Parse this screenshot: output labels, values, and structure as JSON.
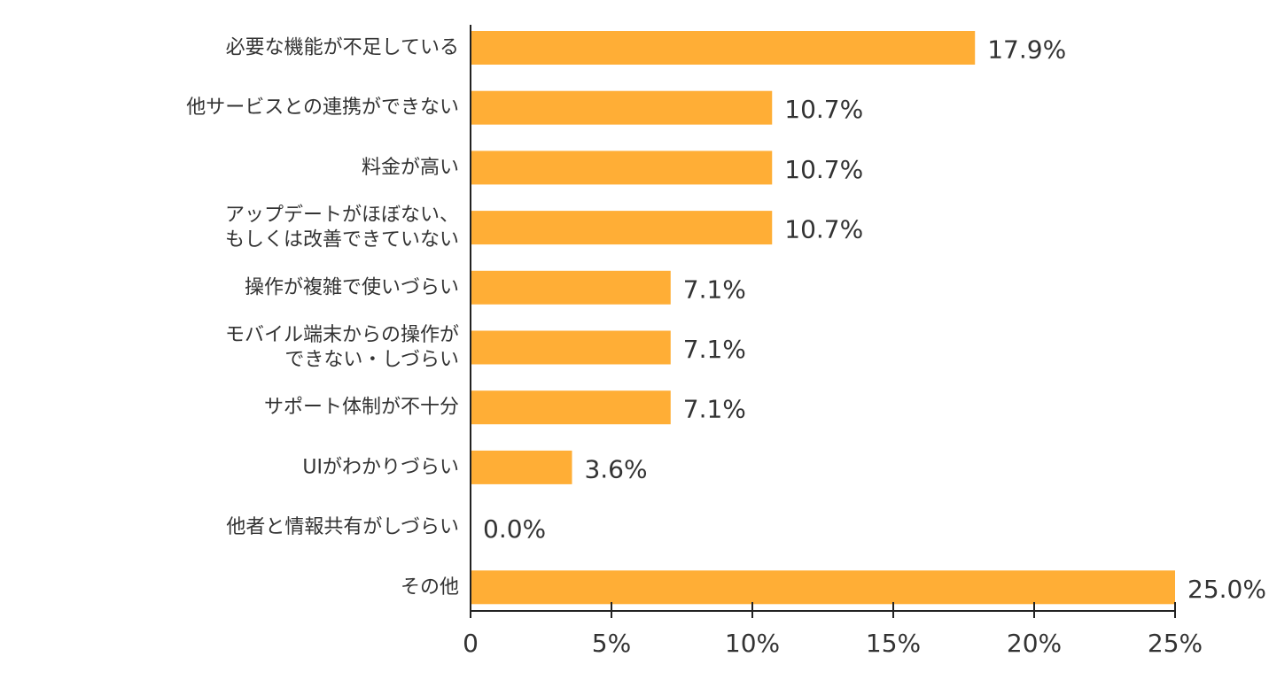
{
  "chart_data": {
    "type": "bar",
    "orientation": "horizontal",
    "categories": [
      [
        "必要な機能が不足している"
      ],
      [
        "他サービスとの連携ができない"
      ],
      [
        "料金が高い"
      ],
      [
        "アップデートがほぼない、",
        "もしくは改善できていない"
      ],
      [
        "操作が複雑で使いづらい"
      ],
      [
        "モバイル端末からの操作が",
        "できない・しづらい"
      ],
      [
        "サポート体制が不十分"
      ],
      [
        "UIがわかりづらい"
      ],
      [
        "他者と情報共有がしづらい"
      ],
      [
        "その他"
      ]
    ],
    "values": [
      17.9,
      10.7,
      10.7,
      10.7,
      7.1,
      7.1,
      7.1,
      3.6,
      0.0,
      25.0
    ],
    "value_labels": [
      "17.9%",
      "10.7%",
      "10.7%",
      "10.7%",
      "7.1%",
      "7.1%",
      "7.1%",
      "3.6%",
      "0.0%",
      "25.0%"
    ],
    "xlim": [
      0,
      25
    ],
    "xticks": [
      0,
      5,
      10,
      15,
      20,
      25
    ],
    "xtick_labels": [
      "0",
      "5%",
      "10%",
      "15%",
      "20%",
      "25%"
    ],
    "bar_color": "#FFAE36",
    "axis_color": "#222222",
    "grid": false,
    "legend": "none"
  }
}
